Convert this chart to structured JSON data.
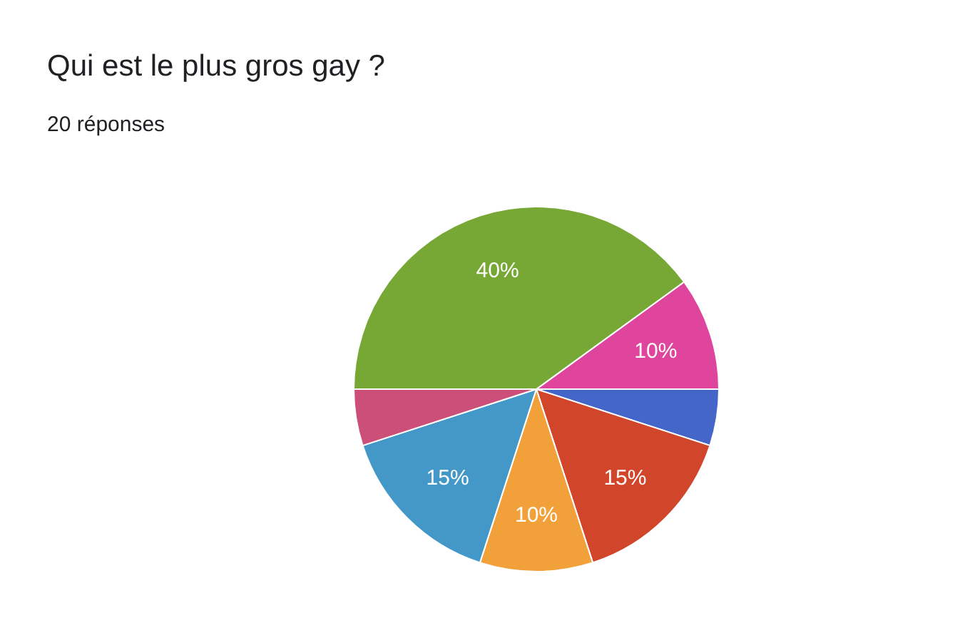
{
  "chart_data": {
    "type": "pie",
    "title": "Qui est le plus gros gay ?",
    "subtitle": "20 réponses",
    "categories": [
      null,
      null,
      null,
      null,
      null,
      null,
      null
    ],
    "values": [
      10,
      5,
      15,
      10,
      15,
      5,
      40
    ],
    "colors": [
      "#e0459e",
      "#4566c9",
      "#d1462b",
      "#f2a03a",
      "#4498c7",
      "#cc4f7a",
      "#77a835"
    ],
    "value_labels": [
      "10%",
      null,
      "15%",
      "10%",
      "15%",
      null,
      "40%"
    ]
  }
}
